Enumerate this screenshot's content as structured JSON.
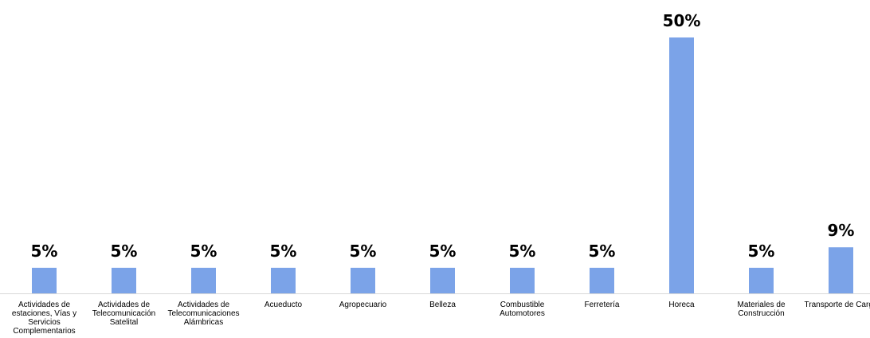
{
  "chart_data": {
    "type": "bar",
    "categories": [
      "Actividades de estaciones, Vías y Servicios Complementarios",
      "Actividades de Telecomunicación Satelital",
      "Actividades de Telecomunicaciones Alámbricas",
      "Acueducto",
      "Agropecuario",
      "Belleza",
      "Combustible Automotores",
      "Ferretería",
      "Horeca",
      "Materiales de Construcción",
      "Transporte de Carga"
    ],
    "category_lines": [
      [
        "Actividades de",
        "estaciones, Vías y",
        "Servicios",
        "Complementarios"
      ],
      [
        "Actividades de",
        "Telecomunicación",
        "Satelital"
      ],
      [
        "Actividades de",
        "Telecomunicaciones",
        "Alámbricas"
      ],
      [
        "Acueducto"
      ],
      [
        "Agropecuario"
      ],
      [
        "Belleza"
      ],
      [
        "Combustible",
        "Automotores"
      ],
      [
        "Ferretería"
      ],
      [
        "Horeca"
      ],
      [
        "Materiales de",
        "Construcción"
      ],
      [
        "Transporte de Carga"
      ]
    ],
    "values": [
      5,
      5,
      5,
      5,
      5,
      5,
      5,
      5,
      50,
      5,
      9
    ],
    "value_labels": [
      "5%",
      "5%",
      "5%",
      "5%",
      "5%",
      "5%",
      "5%",
      "5%",
      "50%",
      "5%",
      "9%"
    ],
    "ylim": [
      0,
      50
    ],
    "grid": false,
    "bar_color": "#7ba3e8"
  }
}
